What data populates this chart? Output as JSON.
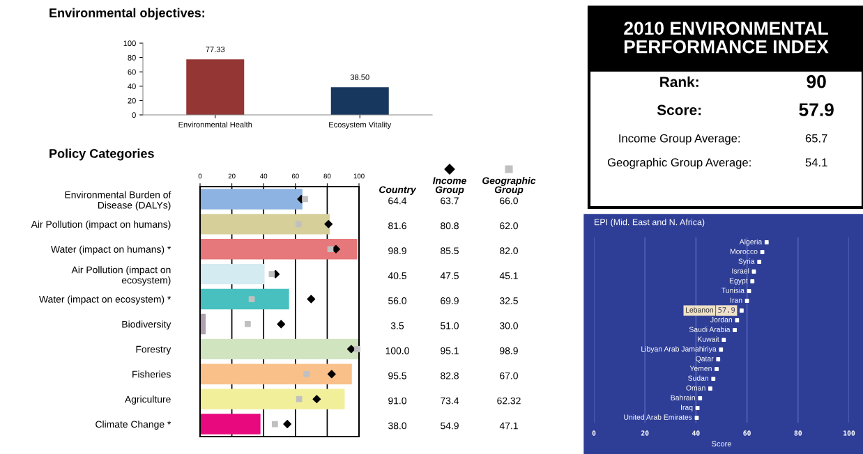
{
  "chart_data": [
    {
      "type": "bar",
      "title": "Environmental objectives:",
      "categories": [
        "Environmental Health",
        "Ecosystem Vitality"
      ],
      "values": [
        77.33,
        38.5
      ],
      "colors": [
        "#943634",
        "#17375e"
      ],
      "value_labels": [
        "77.33",
        "38.50"
      ],
      "ylim": [
        0,
        100
      ],
      "yticks": [
        0,
        20,
        40,
        60,
        80,
        100
      ]
    },
    {
      "type": "bar",
      "title": "Policy Categories",
      "orientation": "horizontal",
      "categories": [
        "Environmental Burden of\nDisease (DALYs)",
        "Air Pollution (impact on humans)",
        "Water (impact on humans) *",
        "Air Pollution (impact on\necosystem)",
        "Water (impact on ecosystem) *",
        "Biodiversity",
        "Forestry",
        "Fisheries",
        "Agriculture",
        "Climate Change *"
      ],
      "series": [
        {
          "type": "bar",
          "colors": [
            "#8db3e2",
            "#d6cf9a",
            "#e6777a",
            "#d4ebf2",
            "#48c0c0",
            "#b0a0b0",
            "#d0e4c0",
            "#f9c08a",
            "#f2ef9a",
            "#e8097f"
          ],
          "values": [
            64.4,
            81.6,
            98.9,
            40.5,
            56.0,
            3.5,
            100.0,
            95.5,
            91.0,
            38.0
          ],
          "value_labels": [
            "64.4",
            "81.6",
            "98.9",
            "40.5",
            "56.0",
            "3.5",
            "100.0",
            "95.5",
            "91.0",
            "38.0"
          ]
        },
        {
          "name": "Income\nGroup",
          "type": "scatter",
          "marker": "diamond",
          "color": "#000000",
          "values": [
            63.7,
            80.8,
            85.5,
            47.5,
            69.9,
            51.0,
            95.1,
            82.8,
            73.4,
            54.9
          ],
          "value_labels": [
            "63.7",
            "80.8",
            "85.5",
            "47.5",
            "69.9",
            "51.0",
            "95.1",
            "82.8",
            "73.4",
            "54.9"
          ]
        },
        {
          "name": "Geographic\nGroup",
          "type": "scatter",
          "marker": "square",
          "color": "#c0c0c0",
          "values": [
            66.0,
            62.0,
            82.0,
            45.1,
            32.5,
            30.0,
            98.9,
            67.0,
            62.32,
            47.1
          ],
          "value_labels": [
            "66.0",
            "62.0",
            "82.0",
            "45.1",
            "32.5",
            "30.0",
            "98.9",
            "67.0",
            "62.32",
            "47.1"
          ]
        }
      ],
      "annotations": [
        "Country"
      ],
      "legend": "right",
      "xlim": [
        0,
        100
      ],
      "xticks": [
        0,
        20,
        40,
        60,
        80,
        100
      ],
      "grid": "x"
    },
    {
      "type": "other",
      "title": "2010 ENVIRONMENTAL\nPERFORMANCE INDEX",
      "annotations": [
        "Rank:",
        "90",
        "Score:",
        "57.9",
        "Income Group Average:",
        "65.7",
        "Geographic Group Average:",
        "54.1"
      ]
    },
    {
      "type": "scatter",
      "orientation": "horizontal",
      "title": "EPI (Mid. East and N. Africa)",
      "xlabel": "Score",
      "marker": "square",
      "color": "#ffffff",
      "categories": [
        "Algeria",
        "Morocco",
        "Syria",
        "Israel",
        "Egypt",
        "Tunisia",
        "Iran",
        "Lebanon",
        "Jordan",
        "Saudi Arabia",
        "Kuwait",
        "Libyan Arab Jamahiriya",
        "Qatar",
        "Yemen",
        "Sudan",
        "Oman",
        "Bahrain",
        "Iraq",
        "United Arab Emirates"
      ],
      "values": [
        67.7,
        66.0,
        64.8,
        62.7,
        62.1,
        60.8,
        60.0,
        57.9,
        56.1,
        55.2,
        50.9,
        49.8,
        48.7,
        48.1,
        46.8,
        45.6,
        41.6,
        40.6,
        40.3
      ],
      "value_labels": [
        null,
        null,
        null,
        null,
        null,
        null,
        null,
        "57.9",
        null,
        null,
        null,
        null,
        null,
        null,
        null,
        null,
        null,
        null,
        null
      ],
      "xlim": [
        0,
        100
      ],
      "xticks": [
        0,
        20,
        40,
        60,
        80,
        100
      ],
      "grid": "x"
    }
  ]
}
